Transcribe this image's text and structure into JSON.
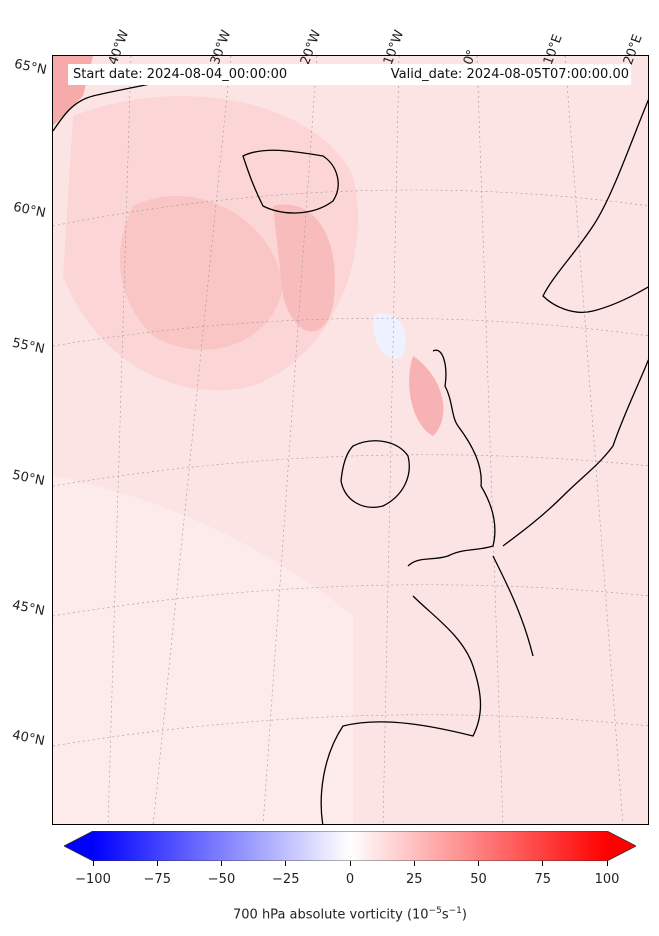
{
  "map": {
    "start_date": "Start date: 2024-08-04_00:00:00",
    "valid_date": "Valid_date: 2024-08-05T07:00:00.00",
    "longitude_labels": [
      "40°W",
      "30°W",
      "20°W",
      "10°W",
      "0°",
      "10°E",
      "20°E"
    ],
    "latitude_labels": [
      "65°N",
      "60°N",
      "55°N",
      "50°N",
      "45°N",
      "40°N"
    ],
    "field_color": "#fde7e7",
    "coastline_color": "#000000"
  },
  "colorbar": {
    "title_prefix": "700 hPa absolute vorticity (10",
    "title_exp1": "−5",
    "title_mid": "s",
    "title_exp2": "−1",
    "title_suffix": ")",
    "tick_labels": [
      "−100",
      "−75",
      "−50",
      "−25",
      "0",
      "25",
      "50",
      "75",
      "100"
    ],
    "range": [
      -100,
      100
    ],
    "min_color": "#0000ff",
    "mid_color": "#ffffff",
    "max_color": "#ff0000"
  }
}
